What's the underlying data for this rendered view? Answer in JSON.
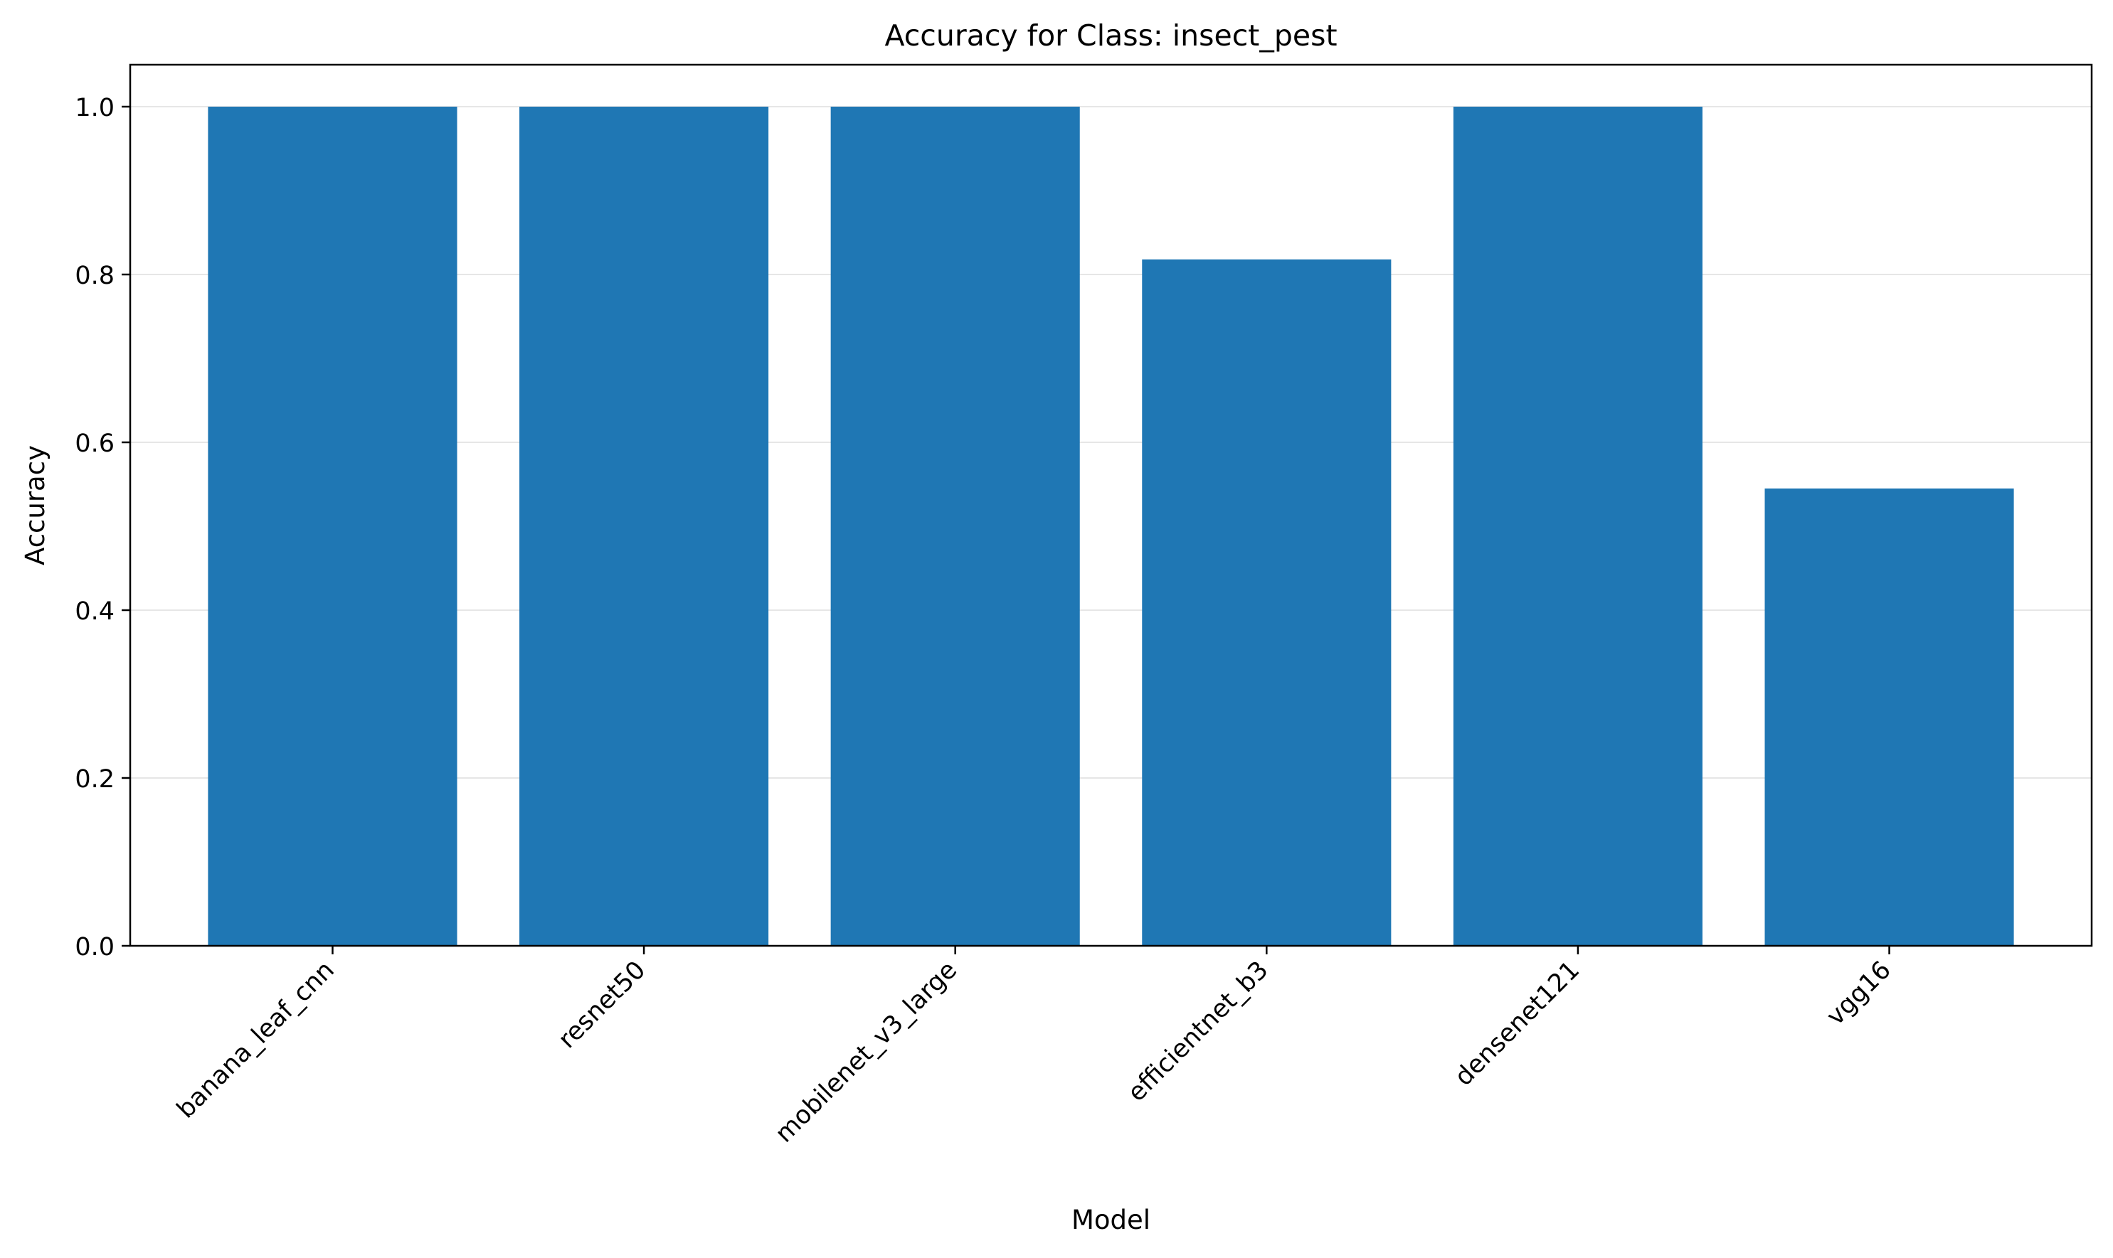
{
  "chart_data": {
    "type": "bar",
    "title": "Accuracy for Class: insect_pest",
    "xlabel": "Model",
    "ylabel": "Accuracy",
    "categories": [
      "banana_leaf_cnn",
      "resnet50",
      "mobilenet_v3_large",
      "efficientnet_b3",
      "densenet121",
      "vgg16"
    ],
    "values": [
      1.0,
      1.0,
      1.0,
      0.818,
      1.0,
      0.545
    ],
    "ylim": [
      0,
      1.05
    ],
    "yticks": [
      "0.0",
      "0.2",
      "0.4",
      "0.6",
      "0.8",
      "1.0"
    ],
    "grid": "horizontal",
    "bar_color": "#1f77b4",
    "grid_color": "#e6e6e6"
  }
}
